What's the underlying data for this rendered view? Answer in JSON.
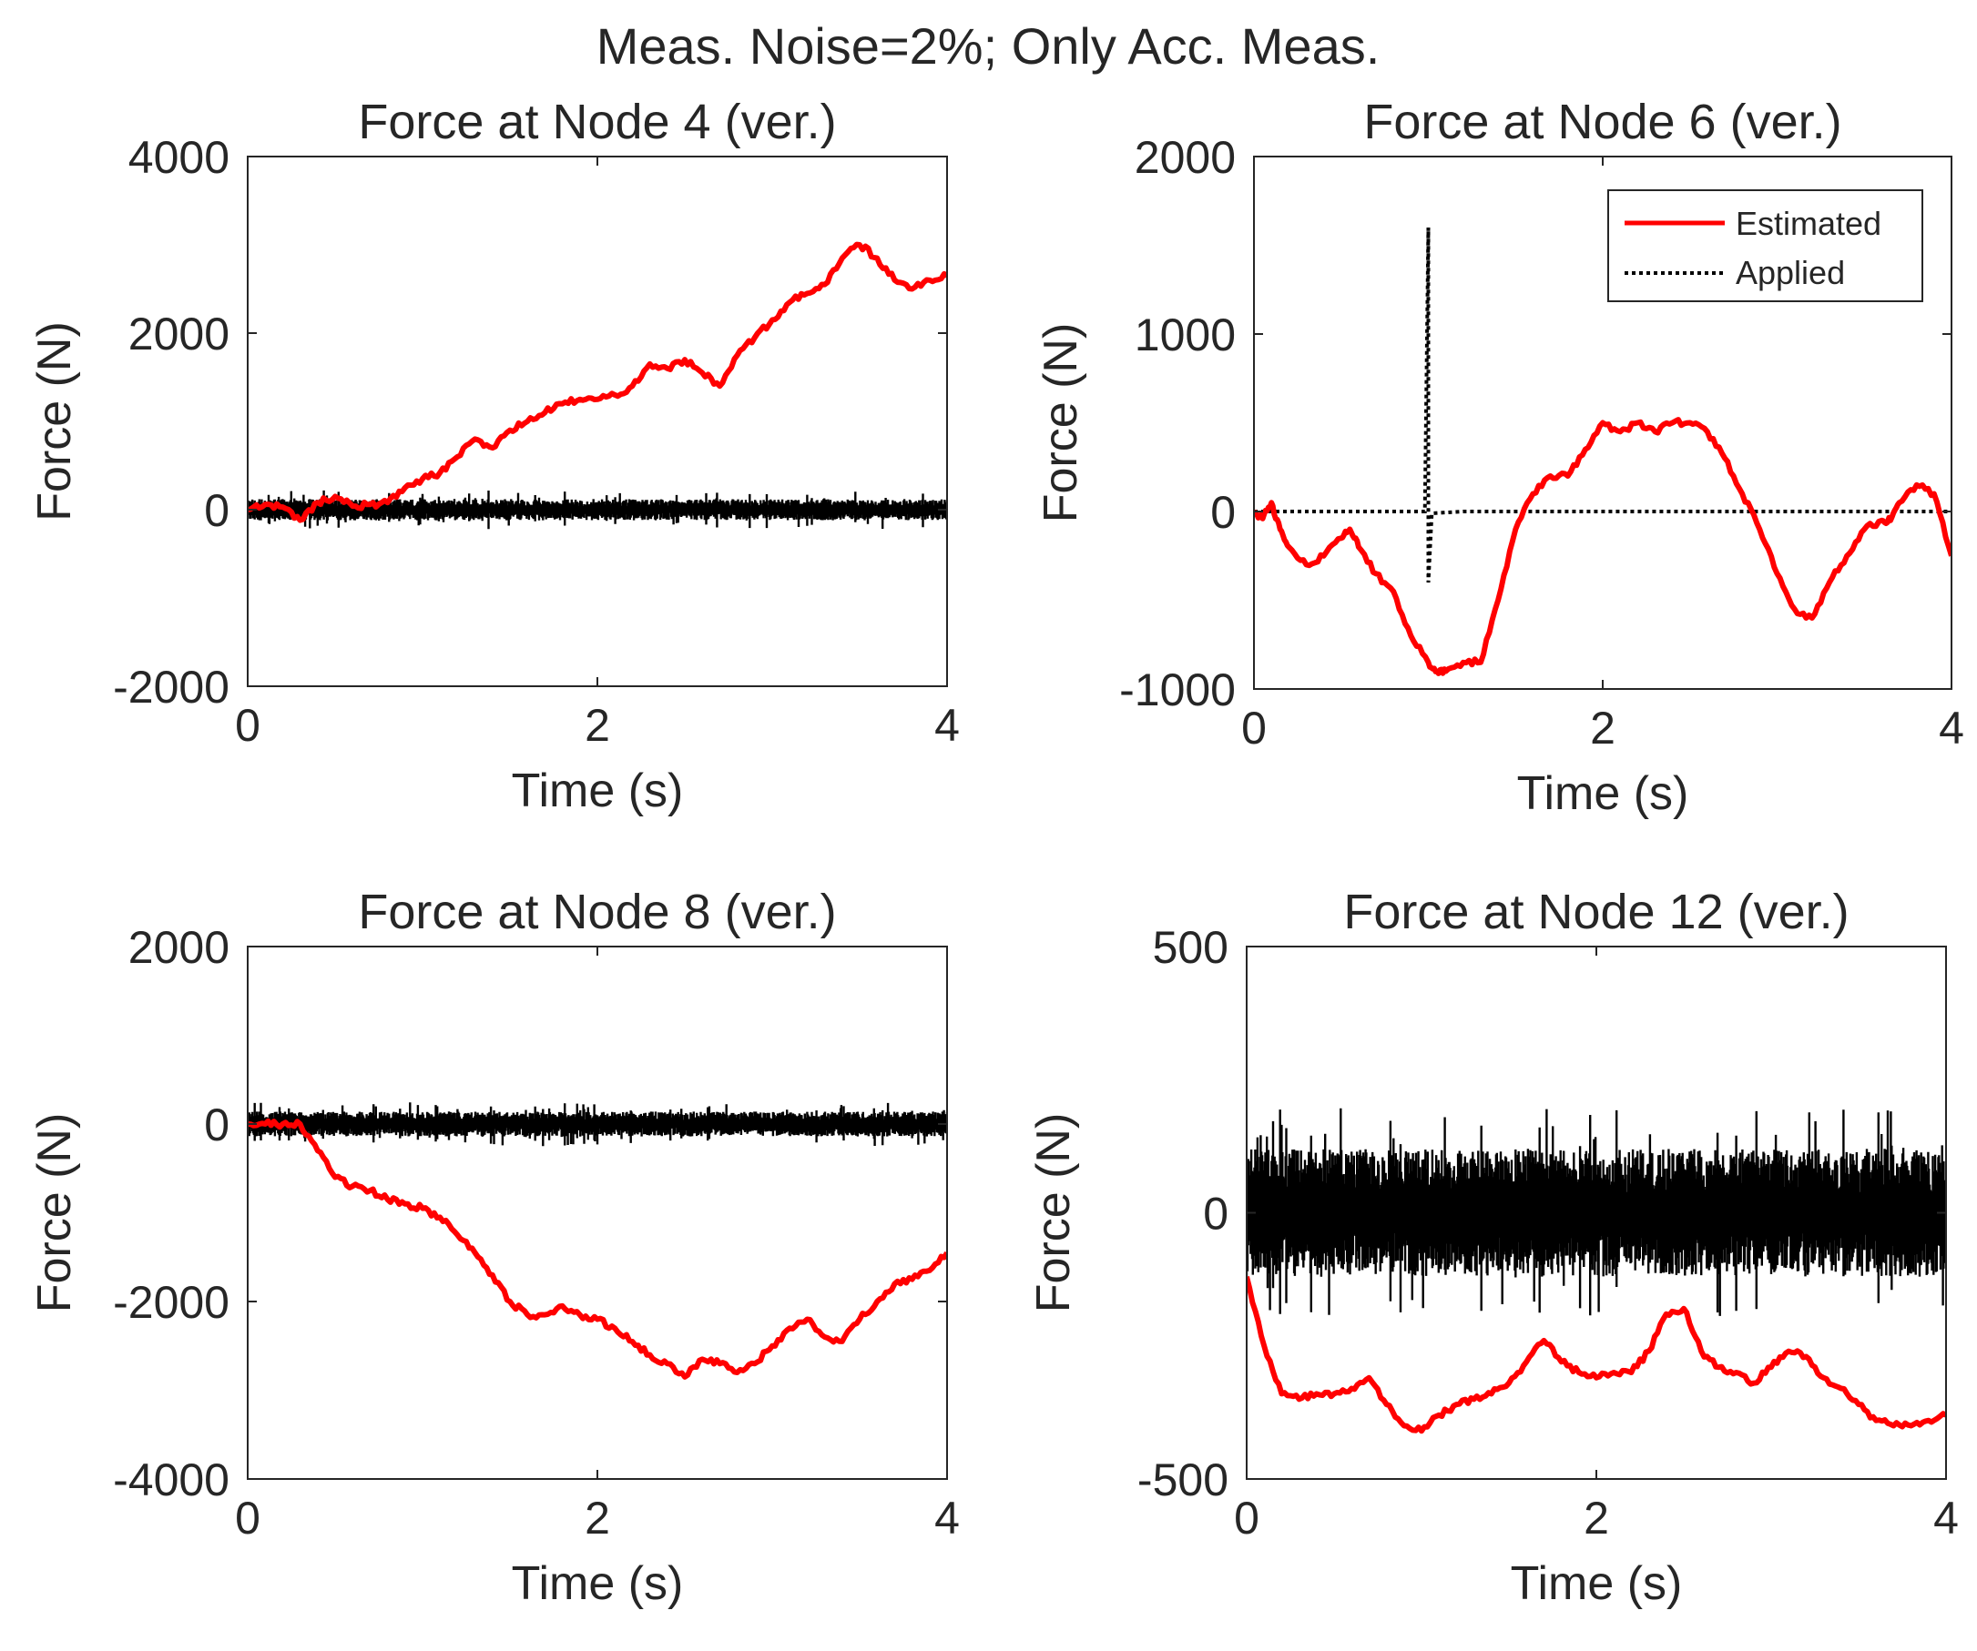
{
  "figure_title": "Meas. Noise=2%; Only Acc. Meas.",
  "colors": {
    "estimated": "#ff0000",
    "applied": "#000000",
    "axes": "#262626"
  },
  "legend": {
    "placement": "top-right",
    "panel": 1,
    "entries": [
      "Estimated",
      "Applied"
    ]
  },
  "chart_data": [
    {
      "type": "line",
      "title": "Force at Node 4 (ver.)",
      "xlabel": "Time (s)",
      "ylabel": "Force (N)",
      "xlim": [
        0,
        4
      ],
      "ylim": [
        -2000,
        4000
      ],
      "xticks": [
        0,
        2,
        4
      ],
      "yticks": [
        -2000,
        0,
        2000,
        4000
      ],
      "xtick_labels": [
        "0",
        "2",
        "4"
      ],
      "ytick_labels": [
        "-2000",
        "0",
        "2000",
        "4000"
      ],
      "series": [
        {
          "name": "Applied",
          "style": "noise",
          "center": 0,
          "amplitude": 120,
          "spikes": 220
        },
        {
          "name": "Estimated",
          "style": "solid",
          "x": [
            0,
            0.1,
            0.2,
            0.3,
            0.4,
            0.5,
            0.6,
            0.7,
            0.8,
            0.9,
            1.0,
            1.1,
            1.2,
            1.3,
            1.4,
            1.5,
            1.6,
            1.7,
            1.8,
            1.9,
            2.0,
            2.1,
            2.2,
            2.3,
            2.4,
            2.5,
            2.6,
            2.7,
            2.8,
            2.9,
            3.0,
            3.1,
            3.2,
            3.3,
            3.4,
            3.5,
            3.6,
            3.7,
            3.8,
            3.9,
            4.0
          ],
          "y": [
            0,
            60,
            30,
            -120,
            80,
            150,
            40,
            60,
            80,
            250,
            350,
            420,
            600,
            800,
            700,
            900,
            1000,
            1100,
            1200,
            1250,
            1250,
            1300,
            1400,
            1650,
            1600,
            1700,
            1550,
            1400,
            1750,
            1950,
            2150,
            2350,
            2450,
            2550,
            2850,
            3000,
            2850,
            2600,
            2500,
            2600,
            2650
          ]
        }
      ]
    },
    {
      "type": "line",
      "title": "Force at Node 6 (ver.)",
      "xlabel": "Time (s)",
      "ylabel": "Force (N)",
      "xlim": [
        0,
        4
      ],
      "ylim": [
        -1000,
        2000
      ],
      "xticks": [
        0,
        2,
        4
      ],
      "yticks": [
        -1000,
        0,
        1000,
        2000
      ],
      "xtick_labels": [
        "0",
        "2",
        "4"
      ],
      "ytick_labels": [
        "-1000",
        "0",
        "1000",
        "2000"
      ],
      "series": [
        {
          "name": "Applied",
          "style": "dashed",
          "x": [
            0,
            0.98,
            1.0,
            1.0,
            1.02,
            1.2,
            4.0
          ],
          "y": [
            0,
            0,
            1600,
            -400,
            -10,
            0,
            0
          ]
        },
        {
          "name": "Estimated",
          "style": "solid",
          "x": [
            0,
            0.05,
            0.1,
            0.15,
            0.2,
            0.3,
            0.4,
            0.5,
            0.55,
            0.6,
            0.7,
            0.8,
            0.9,
            1.0,
            1.05,
            1.1,
            1.2,
            1.3,
            1.4,
            1.5,
            1.6,
            1.7,
            1.8,
            1.9,
            2.0,
            2.1,
            2.2,
            2.3,
            2.4,
            2.5,
            2.6,
            2.7,
            2.8,
            2.9,
            3.0,
            3.1,
            3.2,
            3.3,
            3.4,
            3.5,
            3.6,
            3.65,
            3.7,
            3.8,
            3.9,
            4.0
          ],
          "y": [
            0,
            -40,
            50,
            -100,
            -200,
            -300,
            -250,
            -150,
            -100,
            -200,
            -350,
            -450,
            -700,
            -850,
            -900,
            -900,
            -850,
            -850,
            -500,
            -100,
            100,
            200,
            200,
            350,
            500,
            450,
            500,
            450,
            500,
            500,
            450,
            300,
            100,
            -100,
            -350,
            -550,
            -600,
            -400,
            -250,
            -100,
            -50,
            -50,
            50,
            150,
            100,
            -250
          ]
        }
      ]
    },
    {
      "type": "line",
      "title": "Force at Node 8 (ver.)",
      "xlabel": "Time (s)",
      "ylabel": "Force (N)",
      "xlim": [
        0,
        4
      ],
      "ylim": [
        -4000,
        2000
      ],
      "xticks": [
        0,
        2,
        4
      ],
      "yticks": [
        -4000,
        -2000,
        0,
        2000
      ],
      "xtick_labels": [
        "0",
        "2",
        "4"
      ],
      "ytick_labels": [
        "-4000",
        "-2000",
        "0",
        "2000"
      ],
      "series": [
        {
          "name": "Applied",
          "style": "noise",
          "center": 0,
          "amplitude": 140,
          "spikes": 250
        },
        {
          "name": "Estimated",
          "style": "solid",
          "x": [
            0,
            0.1,
            0.2,
            0.3,
            0.4,
            0.5,
            0.6,
            0.7,
            0.8,
            0.9,
            1.0,
            1.1,
            1.2,
            1.3,
            1.4,
            1.5,
            1.6,
            1.7,
            1.8,
            1.9,
            2.0,
            2.1,
            2.2,
            2.3,
            2.4,
            2.5,
            2.6,
            2.7,
            2.8,
            2.9,
            3.0,
            3.1,
            3.2,
            3.3,
            3.4,
            3.5,
            3.6,
            3.7,
            3.8,
            3.9,
            4.0
          ],
          "y": [
            0,
            0,
            0,
            0,
            -300,
            -600,
            -700,
            -750,
            -850,
            -900,
            -950,
            -1050,
            -1250,
            -1450,
            -1700,
            -2000,
            -2150,
            -2150,
            -2050,
            -2150,
            -2200,
            -2300,
            -2450,
            -2600,
            -2700,
            -2850,
            -2650,
            -2700,
            -2800,
            -2700,
            -2500,
            -2300,
            -2200,
            -2400,
            -2450,
            -2200,
            -2000,
            -1800,
            -1750,
            -1650,
            -1450
          ]
        }
      ]
    },
    {
      "type": "line",
      "title": "Force at Node 12 (ver.)",
      "xlabel": "Time (s)",
      "ylabel": "Force (N)",
      "xlim": [
        0,
        4
      ],
      "ylim": [
        -500,
        500
      ],
      "xticks": [
        0,
        2,
        4
      ],
      "yticks": [
        -500,
        0,
        500
      ],
      "xtick_labels": [
        "0",
        "2",
        "4"
      ],
      "ytick_labels": [
        "-500",
        "0",
        "500"
      ],
      "series": [
        {
          "name": "Applied",
          "style": "noise",
          "center": 0,
          "amplitude": 120,
          "spikes": 200
        },
        {
          "name": "Estimated",
          "style": "solid",
          "x": [
            0,
            0.1,
            0.2,
            0.3,
            0.4,
            0.5,
            0.6,
            0.7,
            0.8,
            0.9,
            1.0,
            1.1,
            1.2,
            1.3,
            1.4,
            1.5,
            1.6,
            1.7,
            1.8,
            1.9,
            2.0,
            2.1,
            2.2,
            2.3,
            2.4,
            2.5,
            2.6,
            2.7,
            2.8,
            2.9,
            3.0,
            3.1,
            3.2,
            3.3,
            3.4,
            3.5,
            3.6,
            3.7,
            3.8,
            3.9,
            4.0
          ],
          "y": [
            -120,
            -250,
            -340,
            -350,
            -340,
            -340,
            -330,
            -310,
            -360,
            -400,
            -410,
            -380,
            -360,
            -350,
            -340,
            -320,
            -280,
            -240,
            -280,
            -300,
            -310,
            -300,
            -300,
            -260,
            -190,
            -180,
            -260,
            -290,
            -300,
            -320,
            -290,
            -260,
            -270,
            -310,
            -330,
            -360,
            -390,
            -400,
            -400,
            -390,
            -380
          ]
        }
      ]
    }
  ]
}
